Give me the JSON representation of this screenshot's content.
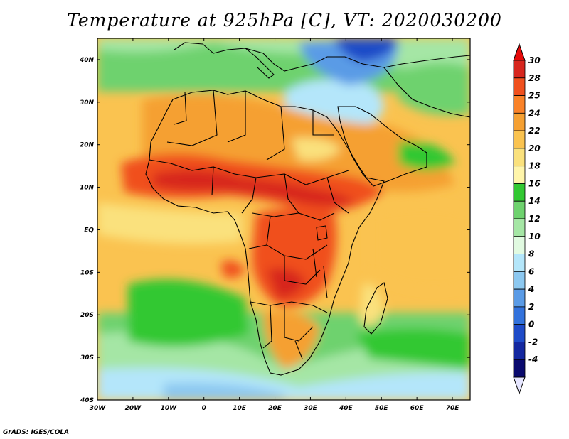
{
  "title": "Temperature at 925hPa [C], VT: 2020030200",
  "credit": "GrADS: IGES/COLA",
  "map": {
    "lon_range": [
      -30,
      75
    ],
    "lat_range": [
      -40,
      45
    ],
    "lon_ticks": [
      {
        "value": -30,
        "label": "30W"
      },
      {
        "value": -20,
        "label": "20W"
      },
      {
        "value": -10,
        "label": "10W"
      },
      {
        "value": 0,
        "label": "0"
      },
      {
        "value": 10,
        "label": "10E"
      },
      {
        "value": 20,
        "label": "20E"
      },
      {
        "value": 30,
        "label": "30E"
      },
      {
        "value": 40,
        "label": "40E"
      },
      {
        "value": 50,
        "label": "50E"
      },
      {
        "value": 60,
        "label": "60E"
      },
      {
        "value": 70,
        "label": "70E"
      }
    ],
    "lat_ticks": [
      {
        "value": 40,
        "label": "40N"
      },
      {
        "value": 30,
        "label": "30N"
      },
      {
        "value": 20,
        "label": "20N"
      },
      {
        "value": 10,
        "label": "10N"
      },
      {
        "value": 0,
        "label": "EQ"
      },
      {
        "value": -10,
        "label": "10S"
      },
      {
        "value": -20,
        "label": "20S"
      },
      {
        "value": -30,
        "label": "30S"
      },
      {
        "value": -40,
        "label": "40S"
      }
    ]
  },
  "colorbar": {
    "labels": [
      "30",
      "28",
      "25",
      "24",
      "22",
      "20",
      "18",
      "16",
      "14",
      "12",
      "10",
      "8",
      "6",
      "4",
      "2",
      "0",
      "-2",
      "-4"
    ],
    "colors": [
      "#d7261e",
      "#f0501e",
      "#fa8228",
      "#f5a032",
      "#fac350",
      "#fae17d",
      "#fff5aa",
      "#32c832",
      "#6ed26e",
      "#a5e6a5",
      "#e1fae1",
      "#b4e6fa",
      "#8cc8f0",
      "#5a9be6",
      "#3272dc",
      "#1e4bc8",
      "#1428a0",
      "#0a0a6e"
    ],
    "top_color": "#e60a0a",
    "bottom_color": "#e6e6ff"
  }
}
